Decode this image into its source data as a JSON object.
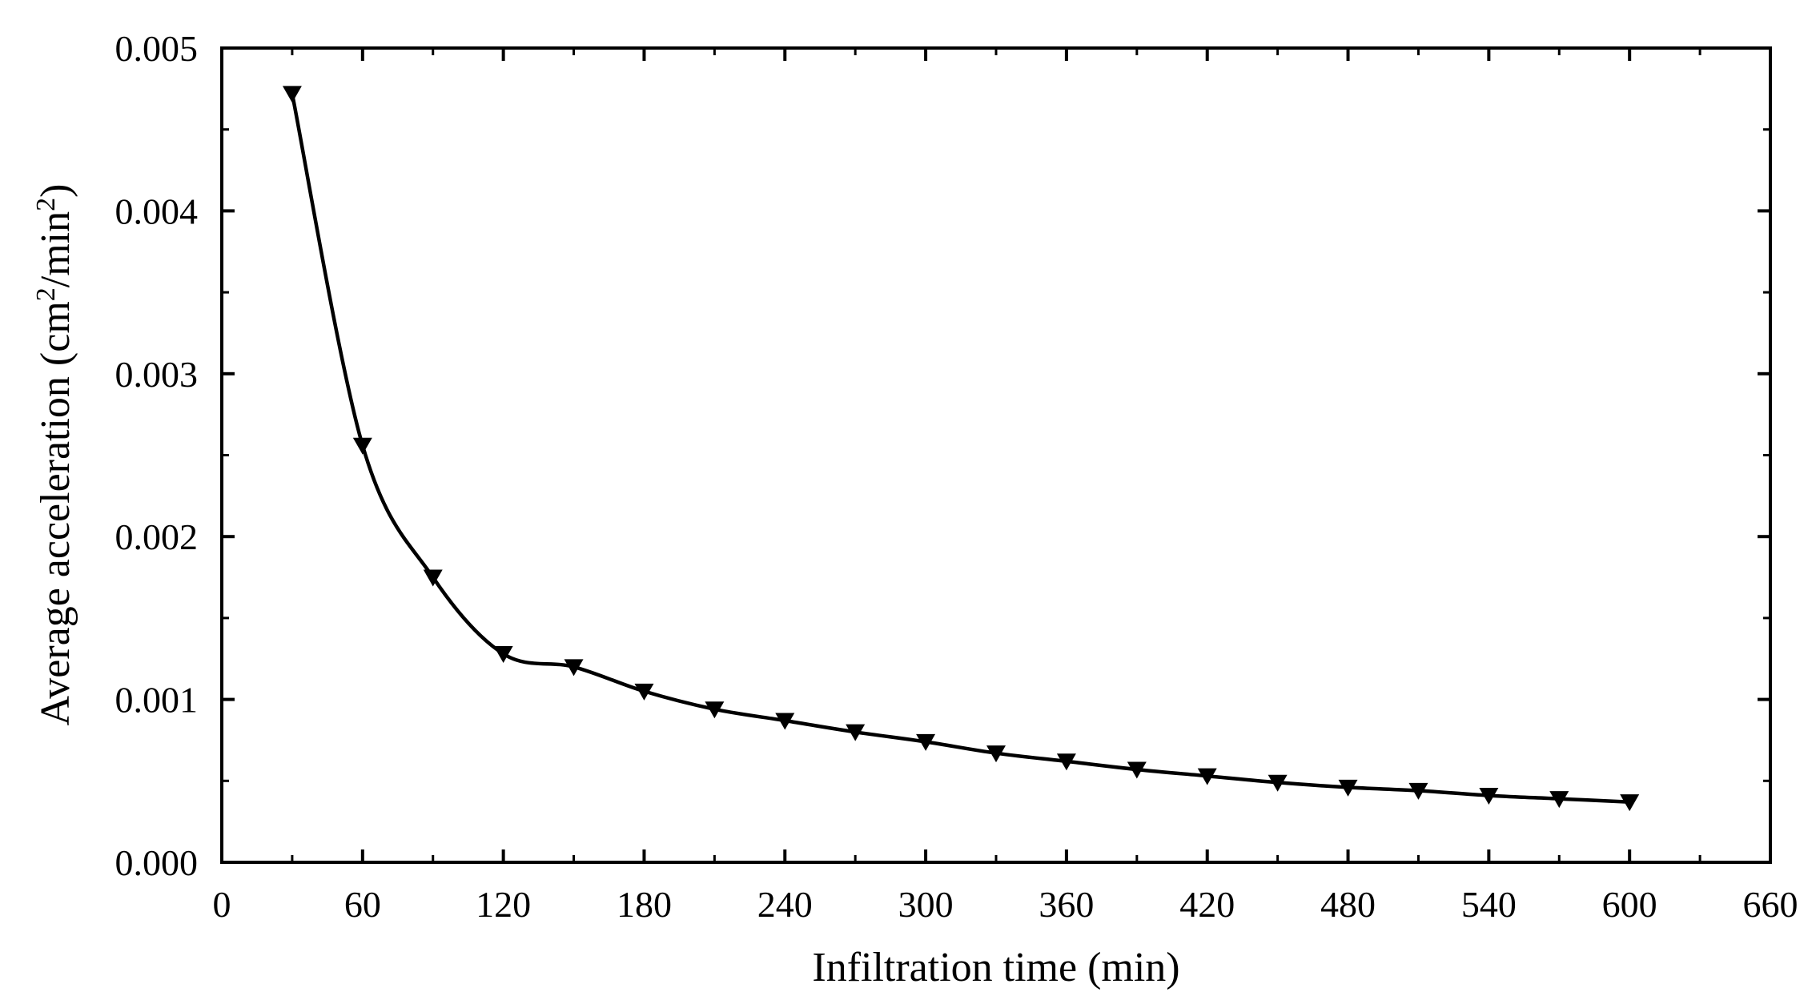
{
  "chart_data": {
    "type": "line",
    "xlabel": "Infiltration time (min)",
    "ylabel": {
      "prefix": "Average acceleration (cm",
      "sup1": "2",
      "middle": "/min",
      "sup2": "2",
      "suffix": ")"
    },
    "xlim": [
      0,
      660
    ],
    "ylim": [
      0,
      0.005
    ],
    "xticks": [
      0,
      60,
      120,
      180,
      240,
      300,
      360,
      420,
      480,
      540,
      600,
      660
    ],
    "xtick_labels": [
      "0",
      "60",
      "120",
      "180",
      "240",
      "300",
      "360",
      "420",
      "480",
      "540",
      "600",
      "660"
    ],
    "yticks": [
      0,
      0.001,
      0.002,
      0.003,
      0.004,
      0.005
    ],
    "ytick_labels": [
      "0.000",
      "0.001",
      "0.002",
      "0.003",
      "0.004",
      "0.005"
    ],
    "grid": false,
    "legend": false,
    "marker": "down-triangle",
    "color": "#000000",
    "series": [
      {
        "x": [
          30,
          60,
          90,
          120,
          150,
          180,
          210,
          240,
          270,
          300,
          330,
          360,
          390,
          420,
          450,
          480,
          510,
          540,
          570,
          600
        ],
        "values": [
          0.00472,
          0.00256,
          0.00175,
          0.00128,
          0.0012,
          0.00105,
          0.00094,
          0.00087,
          0.0008,
          0.00074,
          0.00067,
          0.00062,
          0.00057,
          0.00053,
          0.00049,
          0.00046,
          0.00044,
          0.00041,
          0.00039,
          0.00037
        ]
      }
    ]
  }
}
